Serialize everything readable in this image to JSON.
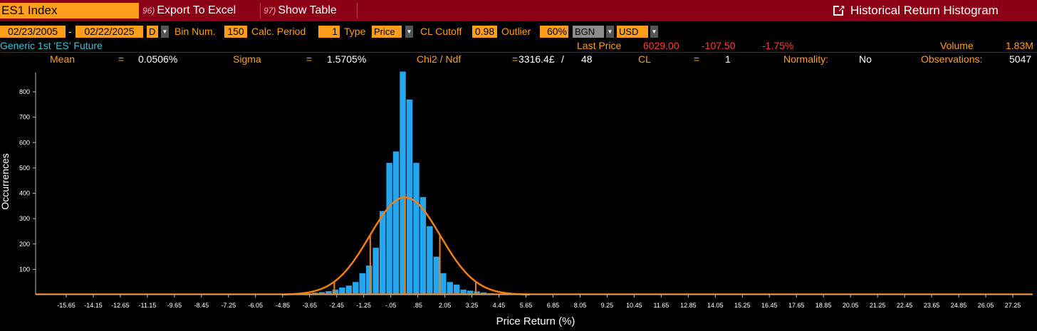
{
  "toolbar": {
    "ticker": "ES1 Index",
    "export_num": "96)",
    "export_label": "Export To Excel",
    "show_num": "97)",
    "show_label": "Show Table",
    "function_title": "Historical Return Histogram"
  },
  "params": {
    "start_date": "02/23/2005",
    "date_sep": "-",
    "end_date": "02/22/2025",
    "periodicity": "D",
    "bin_num_label": "Bin Num.",
    "bin_num": "150",
    "calc_period_label": "Calc. Period",
    "calc_period": "1",
    "type_label": "Type",
    "type": "Price",
    "cl_cutoff_label": "CL Cutoff",
    "cl_cutoff": "0.98",
    "outlier_label": "Outlier",
    "outlier": "60%",
    "source": "BGN",
    "currency": "USD"
  },
  "security": {
    "name": "Generic 1st 'ES' Future",
    "last_price_label": "Last Price",
    "last_price": "6029.00",
    "change": "-107.50",
    "change_pct": "-1.75%",
    "volume_label": "Volume",
    "volume": "1.83M"
  },
  "stats": {
    "mean_label": "Mean",
    "mean_eq": "=",
    "mean": "0.0506%",
    "sigma_label": "Sigma",
    "sigma_eq": "=",
    "sigma": "1.5705%",
    "chi2_label": "Chi2 / Ndf",
    "chi2_eq": "=",
    "chi2": "3316.4£",
    "chi2_sep": "/",
    "ndf": "48",
    "cl_label": "CL",
    "cl_eq": "=",
    "cl": "1",
    "normality_label": "Normality:",
    "normality": "No",
    "observations_label": "Observations:",
    "observations": "5047"
  },
  "colors": {
    "accent": "#ff9e1a",
    "topbar": "#8b0014",
    "bars": "#22a7f0",
    "curve": "#f07f13",
    "negative": "#ff3b3b",
    "info": "#39c3d8"
  },
  "chart_data": {
    "type": "bar",
    "xlabel": "Price Return (%)",
    "ylabel": "Occurrences",
    "ylim": [
      0,
      880
    ],
    "xlim": [
      -16.4,
      28.0
    ],
    "yticks": [
      100,
      200,
      300,
      400,
      500,
      600,
      700,
      800
    ],
    "xticks": [
      "-15.65",
      "-14.15",
      "-12.65",
      "-11.15",
      "-9.65",
      "-8.45",
      "-7.25",
      "-6.05",
      "-4.85",
      "-3.65",
      "-2.45",
      "-1.25",
      "-.05",
      ".85",
      "2.05",
      "3.25",
      "4.45",
      "5.65",
      "6.85",
      "8.05",
      "9.25",
      "10.45",
      "11.65",
      "12.85",
      "14.05",
      "15.25",
      "16.45",
      "17.65",
      "18.85",
      "20.05",
      "21.25",
      "22.45",
      "23.65",
      "24.85",
      "26.05",
      "27.25"
    ],
    "bin_width": 0.3,
    "bins": [
      {
        "x": -5.15,
        "v": 2
      },
      {
        "x": -4.85,
        "v": 3
      },
      {
        "x": -4.55,
        "v": 4
      },
      {
        "x": -4.25,
        "v": 5
      },
      {
        "x": -3.95,
        "v": 8
      },
      {
        "x": -3.65,
        "v": 10
      },
      {
        "x": -3.35,
        "v": 14
      },
      {
        "x": -3.05,
        "v": 20
      },
      {
        "x": -2.75,
        "v": 28
      },
      {
        "x": -2.45,
        "v": 36
      },
      {
        "x": -2.15,
        "v": 50
      },
      {
        "x": -1.85,
        "v": 85
      },
      {
        "x": -1.55,
        "v": 115
      },
      {
        "x": -1.25,
        "v": 185
      },
      {
        "x": -0.95,
        "v": 330
      },
      {
        "x": -0.65,
        "v": 520
      },
      {
        "x": -0.35,
        "v": 565
      },
      {
        "x": -0.05,
        "v": 880
      },
      {
        "x": 0.25,
        "v": 770
      },
      {
        "x": 0.55,
        "v": 520
      },
      {
        "x": 0.85,
        "v": 385
      },
      {
        "x": 1.15,
        "v": 270
      },
      {
        "x": 1.45,
        "v": 150
      },
      {
        "x": 1.75,
        "v": 85
      },
      {
        "x": 2.05,
        "v": 50
      },
      {
        "x": 2.35,
        "v": 40
      },
      {
        "x": 2.65,
        "v": 20
      },
      {
        "x": 2.95,
        "v": 16
      },
      {
        "x": 3.25,
        "v": 13
      },
      {
        "x": 3.55,
        "v": 9
      },
      {
        "x": 3.85,
        "v": 6
      },
      {
        "x": 4.15,
        "v": 4
      },
      {
        "x": 4.45,
        "v": 3
      },
      {
        "x": 4.75,
        "v": 2
      }
    ],
    "fit": {
      "mean": 0.0506,
      "sigma": 1.5705,
      "peak": 384
    },
    "sigma_lines": [
      -3.1,
      -1.5,
      0.0506,
      1.6,
      3.2
    ]
  }
}
